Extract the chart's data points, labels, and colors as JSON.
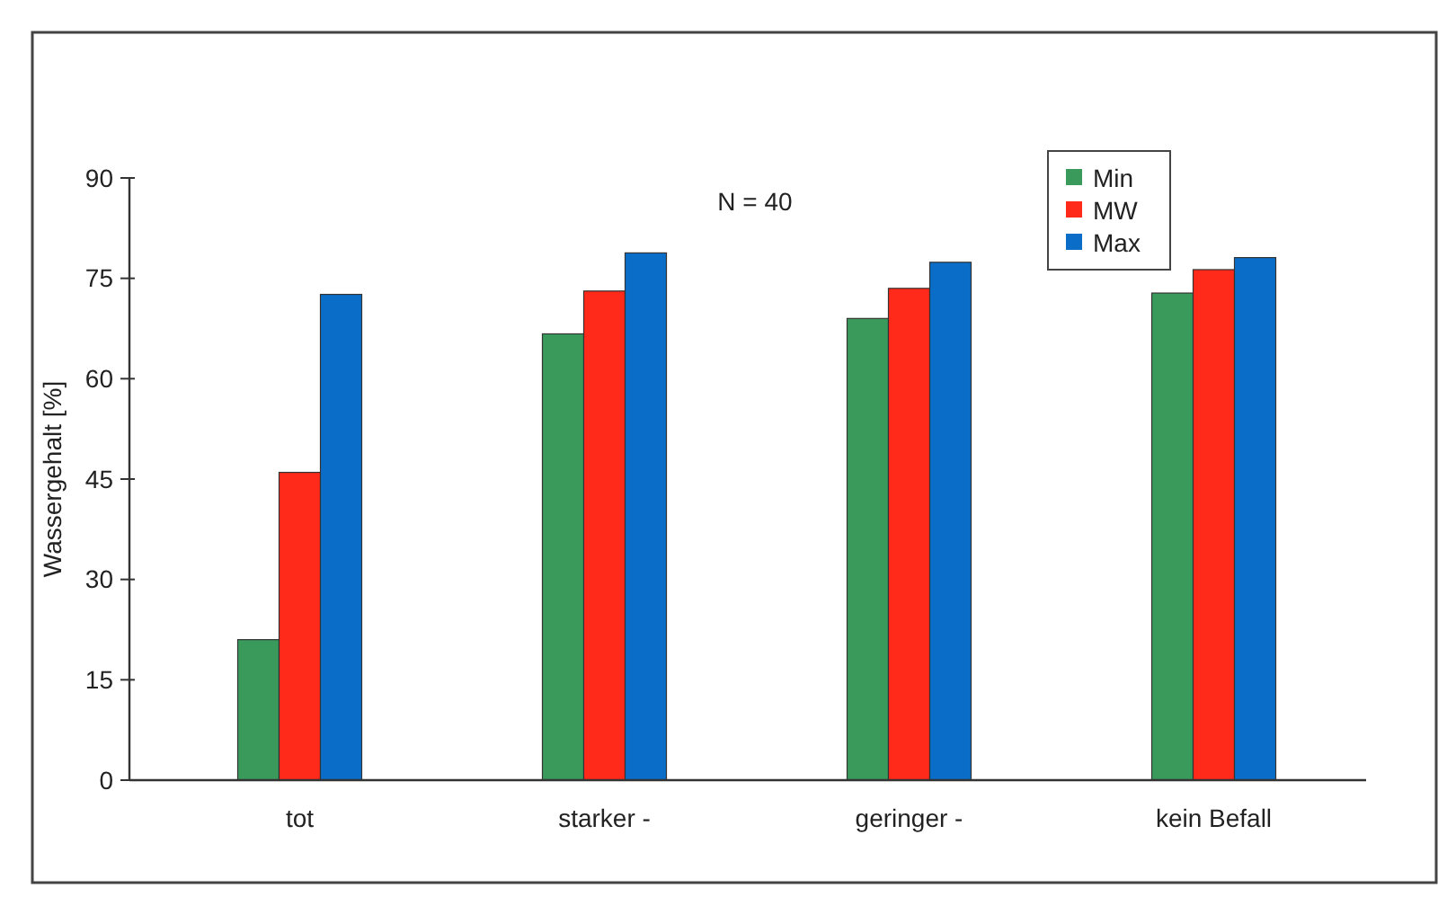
{
  "chart_data": {
    "type": "bar",
    "ylabel": "Wassergehalt [%]",
    "annotations": [
      "N = 40"
    ],
    "categories": [
      "tot",
      "starker -",
      "geringer -",
      "kein Befall"
    ],
    "series": [
      {
        "name": "Min",
        "color": "#3a9a5c",
        "values": [
          21,
          66.7,
          69,
          72.8
        ]
      },
      {
        "name": "MW",
        "color": "#ff2a1a",
        "values": [
          46,
          73.1,
          73.5,
          76.3
        ]
      },
      {
        "name": "Max",
        "color": "#0a6ec8",
        "values": [
          72.6,
          78.8,
          77.4,
          78.1
        ]
      }
    ],
    "ylim": [
      0,
      90
    ],
    "yticks": [
      0,
      15,
      30,
      45,
      60,
      75,
      90
    ],
    "grid": false,
    "legend": "top right"
  }
}
